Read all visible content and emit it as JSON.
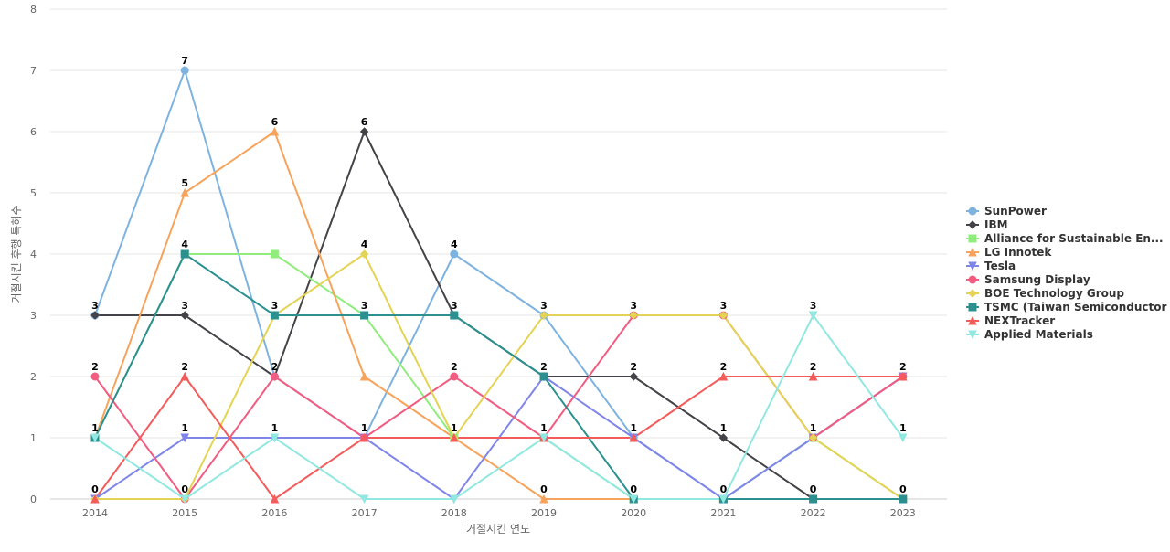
{
  "chart_data": {
    "type": "line",
    "xlabel": "거절시킨 연도",
    "ylabel": "거절시킨 후행 특허수",
    "x": [
      "2014",
      "2015",
      "2016",
      "2017",
      "2018",
      "2019",
      "2020",
      "2021",
      "2022",
      "2023"
    ],
    "yticks": [
      "0",
      "1",
      "2",
      "3",
      "4",
      "5",
      "6",
      "7",
      "8"
    ],
    "ylim": [
      0,
      8
    ],
    "grid": true,
    "legend_position": "right",
    "series": [
      {
        "name": "SunPower",
        "color": "#7eb3e0",
        "marker": "circle",
        "values": [
          3,
          7,
          2,
          1,
          4,
          3,
          1,
          0,
          1,
          2
        ]
      },
      {
        "name": "IBM",
        "color": "#434348",
        "marker": "diamond",
        "values": [
          3,
          3,
          2,
          6,
          3,
          2,
          2,
          1,
          0,
          0
        ]
      },
      {
        "name": "Alliance for Sustainable En...",
        "color": "#90ed7d",
        "marker": "square",
        "values": [
          1,
          4,
          4,
          3,
          1,
          1,
          0,
          0,
          1,
          0
        ]
      },
      {
        "name": "LG Innotek",
        "color": "#f7a35c",
        "marker": "triangle",
        "values": [
          1,
          5,
          6,
          2,
          1,
          0,
          0,
          0,
          0,
          0
        ]
      },
      {
        "name": "Tesla",
        "color": "#8085e9",
        "marker": "triangle-down",
        "values": [
          0,
          1,
          1,
          1,
          0,
          2,
          1,
          0,
          1,
          2
        ]
      },
      {
        "name": "Samsung Display",
        "color": "#f15c80",
        "marker": "circle",
        "values": [
          2,
          0,
          2,
          1,
          2,
          1,
          3,
          3,
          1,
          2
        ]
      },
      {
        "name": "BOE Technology Group",
        "color": "#e4d354",
        "marker": "diamond",
        "values": [
          0,
          0,
          3,
          4,
          1,
          3,
          3,
          3,
          1,
          0
        ]
      },
      {
        "name": "TSMC (Taiwan Semiconductor ...",
        "color": "#2b908f",
        "marker": "square",
        "values": [
          1,
          4,
          3,
          3,
          3,
          2,
          0,
          0,
          0,
          0
        ]
      },
      {
        "name": "NEXTracker",
        "color": "#f45b5b",
        "marker": "triangle",
        "values": [
          0,
          2,
          0,
          1,
          1,
          1,
          1,
          2,
          2,
          2
        ]
      },
      {
        "name": "Applied Materials",
        "color": "#91e8e1",
        "marker": "triangle-down",
        "values": [
          1,
          0,
          1,
          0,
          0,
          1,
          0,
          0,
          3,
          1
        ]
      }
    ],
    "data_labels": [
      [
        "3",
        "4",
        "3",
        "3",
        "3",
        "3",
        "3",
        "3",
        "3",
        "2"
      ],
      [
        "2",
        "5",
        "6",
        "6",
        "4",
        "2",
        "2",
        "2",
        "2",
        "1"
      ],
      [
        "1",
        "3",
        "2",
        "4",
        "2",
        "1",
        "1",
        "1",
        "1",
        "0"
      ],
      [
        "0",
        "2",
        "1",
        "1",
        "1",
        "0",
        "0",
        "0",
        "0",
        ""
      ],
      [
        "",
        "7",
        "",
        "",
        "",
        "",
        "",
        "",
        "",
        ""
      ],
      [
        "",
        "1",
        "",
        "",
        "",
        "",
        "",
        "",
        "",
        ""
      ],
      [
        "",
        "0",
        "",
        "",
        "",
        "",
        "",
        "",
        "",
        ""
      ]
    ]
  }
}
